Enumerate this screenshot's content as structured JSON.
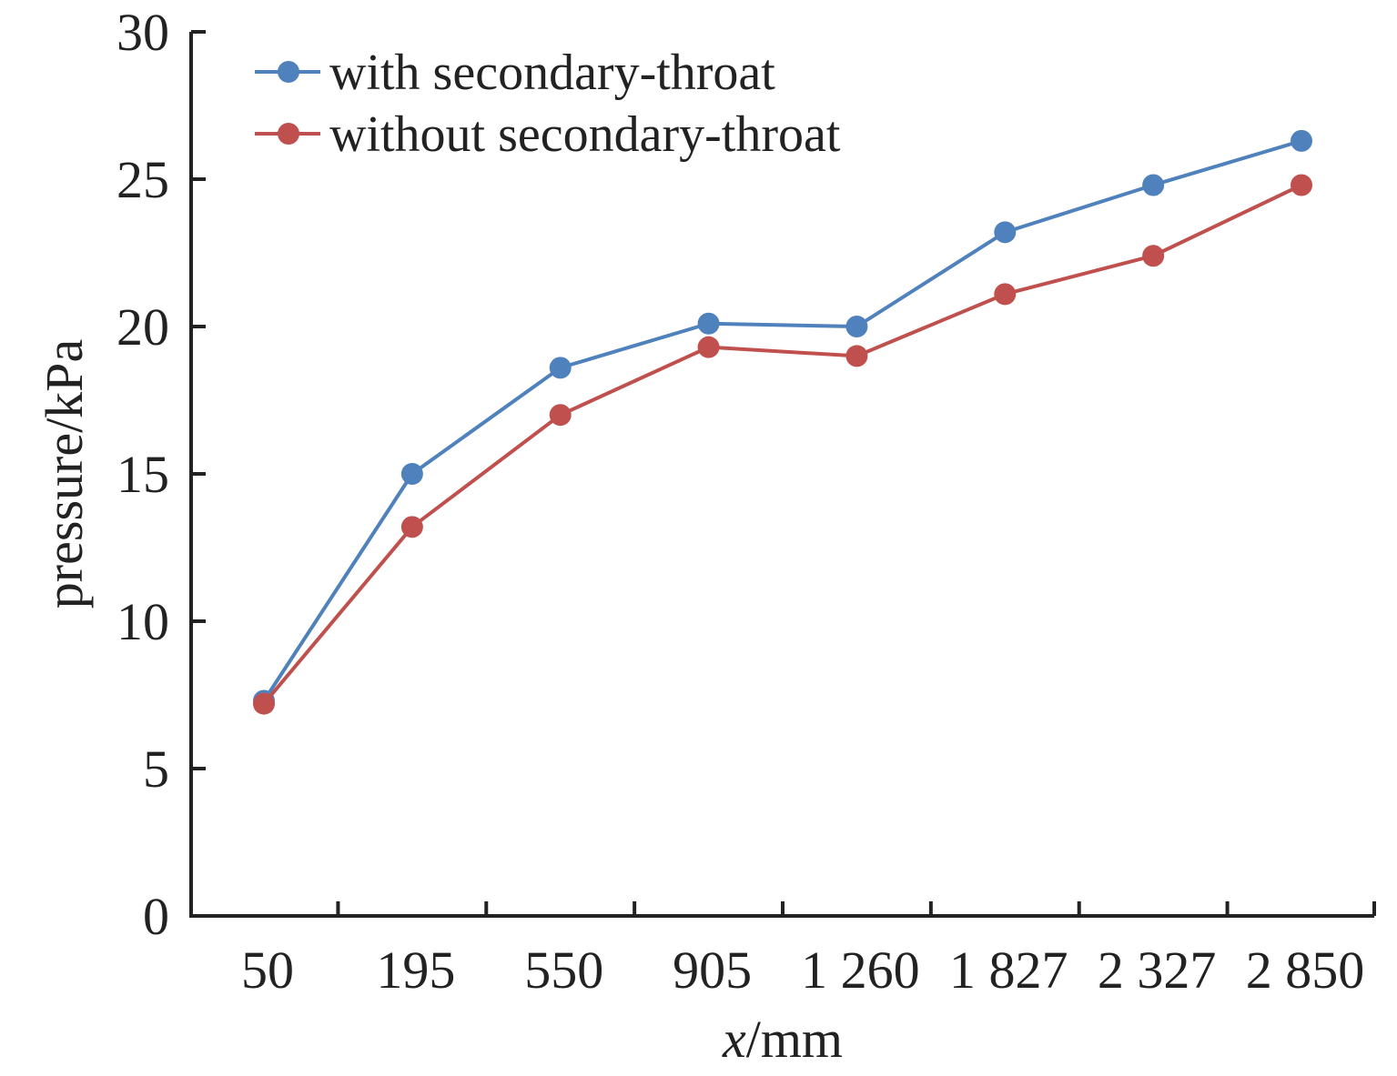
{
  "chart_data": {
    "type": "line",
    "title": "",
    "xlabel_italic": "x",
    "xlabel_unit": "/mm",
    "ylabel": "pressure/kPa",
    "categories": [
      "50",
      "195",
      "550",
      "905",
      "1 260",
      "1 827",
      "2 327",
      "2 850"
    ],
    "ylim": [
      0,
      30
    ],
    "yticks": [
      "0",
      "5",
      "10",
      "15",
      "20",
      "25",
      "30"
    ],
    "ytick_values": [
      0,
      5,
      10,
      15,
      20,
      25,
      30
    ],
    "grid": false,
    "legend_position": "top-left",
    "series": [
      {
        "name": "with secondary-throat",
        "color": "#4f81bd",
        "values": [
          7.3,
          15.0,
          18.6,
          20.1,
          20.0,
          23.2,
          24.8,
          26.3
        ]
      },
      {
        "name": "without secondary-throat",
        "color": "#c0504d",
        "values": [
          7.2,
          13.2,
          17.0,
          19.3,
          19.0,
          21.1,
          22.4,
          24.8
        ]
      }
    ]
  }
}
